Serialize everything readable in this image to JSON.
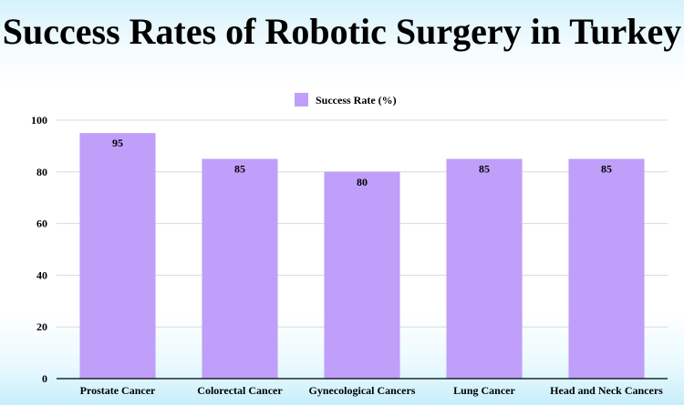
{
  "page": {
    "title": "Success Rates of Robotic Surgery in Turkey"
  },
  "chart_data": {
    "type": "bar",
    "title": "Success Rates of Robotic Surgery in Turkey",
    "categories": [
      "Prostate Cancer",
      "Colorectal Cancer",
      "Gynecological Cancers",
      "Lung Cancer",
      "Head and Neck Cancers"
    ],
    "series": [
      {
        "name": "Success Rate (%)",
        "values": [
          95,
          85,
          80,
          85,
          85
        ],
        "color": "#bf9ff9"
      }
    ],
    "xlabel": "",
    "ylabel": "",
    "ylim": [
      0,
      100
    ],
    "yticks": [
      0,
      20,
      40,
      60,
      80,
      100
    ],
    "grid": true,
    "legend_position": "top-center",
    "data_labels": true,
    "colors": {
      "grid": "#d9d9d9",
      "axis": "#000000",
      "text": "#000000"
    }
  }
}
